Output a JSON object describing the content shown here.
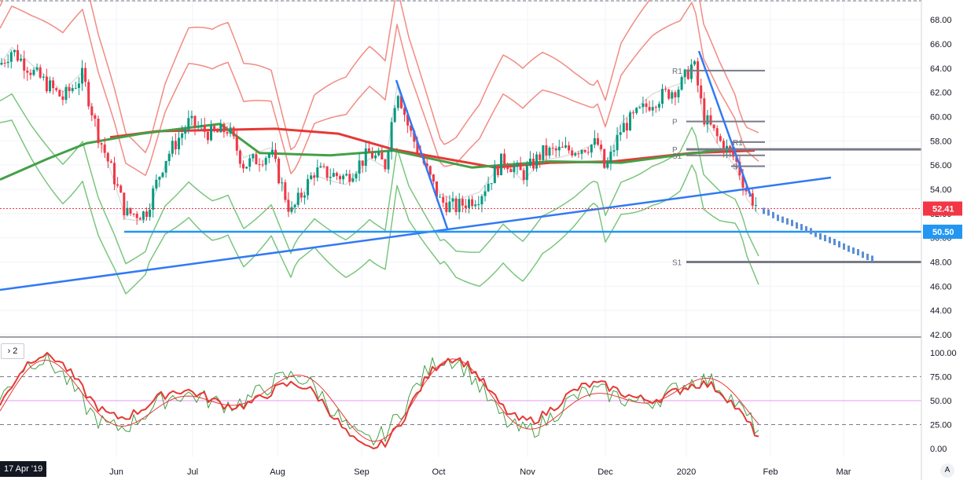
{
  "chart_data": [
    {
      "type": "candlestick",
      "pane": "price",
      "ylim": [
        42,
        69.5
      ],
      "y_ticks": [
        "42.00",
        "44.00",
        "46.00",
        "48.00",
        "50.00",
        "52.00",
        "54.00",
        "56.00",
        "58.00",
        "60.00",
        "62.00",
        "64.00",
        "66.00",
        "68.00",
        "69.50"
      ],
      "x_ticks": [
        "Jun",
        "Jul",
        "Aug",
        "Sep",
        "Oct",
        "Nov",
        "Dec",
        "2020",
        "Feb",
        "Mar"
      ],
      "x_start_label": "17 Apr '19",
      "last_price": "52.41",
      "horizontal_level": "50.50",
      "pivot_labels": [
        "R1",
        "P",
        "P",
        "S1",
        "R1",
        "S1",
        "S1"
      ],
      "colors": {
        "up": "#26a69a",
        "down": "#ef5350",
        "trend": "#3179f5",
        "ma_fast": "#e53935",
        "ma_slow": "#43a047",
        "bb_upper": "#f28b82",
        "bb_lower": "#7bc67e",
        "pivot": "#787b86"
      },
      "legend_position": "none",
      "grid": true
    },
    {
      "type": "line",
      "pane": "stochastic",
      "ylim": [
        0,
        100
      ],
      "y_ticks": [
        "0.00",
        "25.00",
        "50.00",
        "75.00",
        "100.00"
      ],
      "levels": [
        25,
        50,
        75
      ],
      "pane_index": "2"
    }
  ]
}
